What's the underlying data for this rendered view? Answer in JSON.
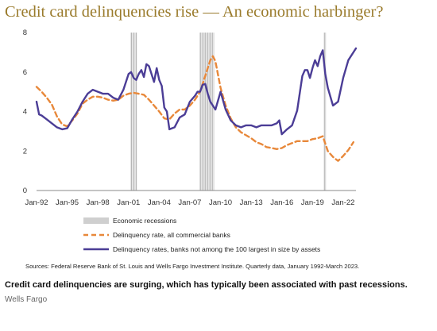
{
  "title": "Credit card delinquencies rise — An economic harbinger?",
  "caption": "Credit card delinquencies are surging, which has typically been associated with past recessions.",
  "credit": "Wells Fargo",
  "sources": "Sources: Federal Reserve Bank of St. Louis and Wells Fargo Investment Institute. Quarterly data, January 1992-March 2023.",
  "colors": {
    "recession": "#cfcfcf",
    "all_banks": "#e8883a",
    "non_top100": "#4b3d96",
    "title": "#9a7b2c"
  },
  "chart_data": {
    "type": "line",
    "xlim": [
      1992.0,
      2023.25
    ],
    "ylim": [
      0,
      8
    ],
    "yticks": [
      0,
      2,
      4,
      6,
      8
    ],
    "ytick_labels": [
      "0",
      "2",
      "4",
      "6",
      "8"
    ],
    "xticks": [
      1992,
      1995,
      1998,
      2001,
      2004,
      2007,
      2010,
      2013,
      2016,
      2019,
      2022
    ],
    "xtick_labels": [
      "Jan-92",
      "Jan-95",
      "Jan-98",
      "Jan-01",
      "Jan-04",
      "Jan-07",
      "Jan-10",
      "Jan-13",
      "Jan-16",
      "Jan-19",
      "Jan-22"
    ],
    "recessions": [
      {
        "start": 2001.17,
        "end": 2001.83
      },
      {
        "start": 2007.92,
        "end": 2009.42
      },
      {
        "start": 2020.08,
        "end": 2020.33
      }
    ],
    "legend": {
      "position": "bottom",
      "recession_label": "Economic recessions",
      "entries": [
        {
          "name": "Delinquency rate, all commercial banks",
          "style": "dashed",
          "color_key": "all_banks"
        },
        {
          "name": "Delinquency rates, banks not among the 100 largest in size by assets",
          "style": "solid",
          "color_key": "non_top100"
        }
      ]
    },
    "series": [
      {
        "name": "Delinquency rate, all commercial banks",
        "x": [
          1992.0,
          1992.5,
          1993.0,
          1993.5,
          1994.0,
          1994.5,
          1995.0,
          1995.5,
          1996.0,
          1996.5,
          1997.0,
          1997.5,
          1998.0,
          1998.5,
          1999.0,
          1999.5,
          2000.0,
          2000.5,
          2001.0,
          2001.5,
          2002.0,
          2002.5,
          2003.0,
          2003.5,
          2004.0,
          2004.5,
          2005.0,
          2005.5,
          2006.0,
          2006.5,
          2007.0,
          2007.5,
          2008.0,
          2008.5,
          2009.0,
          2009.25,
          2009.5,
          2010.0,
          2010.5,
          2011.0,
          2011.5,
          2012.0,
          2012.5,
          2013.0,
          2013.5,
          2014.0,
          2014.5,
          2015.0,
          2015.5,
          2016.0,
          2016.5,
          2017.0,
          2017.5,
          2018.0,
          2018.5,
          2019.0,
          2019.5,
          2020.0,
          2020.5,
          2021.0,
          2021.5,
          2022.0,
          2022.5,
          2023.0
        ],
        "values": [
          5.25,
          5.0,
          4.7,
          4.35,
          3.75,
          3.35,
          3.25,
          3.55,
          3.9,
          4.4,
          4.6,
          4.75,
          4.75,
          4.7,
          4.6,
          4.55,
          4.6,
          4.8,
          4.9,
          4.95,
          4.9,
          4.85,
          4.6,
          4.3,
          4.0,
          3.65,
          3.6,
          3.9,
          4.1,
          4.1,
          4.3,
          4.6,
          5.0,
          5.8,
          6.6,
          6.8,
          6.55,
          5.2,
          4.3,
          3.65,
          3.2,
          2.95,
          2.8,
          2.65,
          2.45,
          2.35,
          2.2,
          2.15,
          2.1,
          2.15,
          2.3,
          2.4,
          2.5,
          2.5,
          2.5,
          2.6,
          2.65,
          2.75,
          2.0,
          1.7,
          1.5,
          1.75,
          2.05,
          2.45
        ]
      },
      {
        "name": "Delinquency rates, banks not among the 100 largest in size by assets",
        "x": [
          1992.0,
          1992.25,
          1992.5,
          1993.0,
          1993.5,
          1994.0,
          1994.5,
          1995.0,
          1995.5,
          1996.0,
          1996.5,
          1997.0,
          1997.5,
          1998.0,
          1998.5,
          1999.0,
          1999.5,
          2000.0,
          2000.5,
          2001.0,
          2001.25,
          2001.5,
          2001.75,
          2002.0,
          2002.25,
          2002.5,
          2002.75,
          2003.0,
          2003.25,
          2003.5,
          2003.75,
          2004.0,
          2004.25,
          2004.5,
          2004.75,
          2005.0,
          2005.25,
          2005.5,
          2006.0,
          2006.5,
          2007.0,
          2007.5,
          2007.75,
          2008.0,
          2008.25,
          2008.5,
          2008.75,
          2009.0,
          2009.5,
          2010.0,
          2010.5,
          2011.0,
          2011.5,
          2012.0,
          2012.5,
          2013.0,
          2013.5,
          2014.0,
          2014.5,
          2015.0,
          2015.5,
          2015.75,
          2016.0,
          2016.5,
          2017.0,
          2017.5,
          2018.0,
          2018.25,
          2018.5,
          2018.75,
          2019.0,
          2019.25,
          2019.5,
          2019.75,
          2020.0,
          2020.25,
          2020.5,
          2021.0,
          2021.5,
          2022.0,
          2022.5,
          2023.0,
          2023.25
        ],
        "values": [
          4.5,
          3.85,
          3.8,
          3.6,
          3.4,
          3.2,
          3.1,
          3.15,
          3.6,
          4.0,
          4.5,
          4.9,
          5.1,
          5.0,
          4.9,
          4.9,
          4.7,
          4.6,
          5.1,
          5.9,
          6.0,
          5.7,
          5.6,
          5.9,
          6.1,
          5.75,
          6.4,
          6.3,
          5.9,
          5.5,
          6.2,
          5.6,
          5.3,
          4.2,
          4.0,
          3.1,
          3.15,
          3.2,
          3.7,
          3.85,
          4.5,
          4.8,
          5.0,
          5.0,
          5.35,
          5.4,
          4.9,
          4.5,
          4.1,
          5.0,
          4.1,
          3.55,
          3.3,
          3.2,
          3.3,
          3.3,
          3.2,
          3.3,
          3.3,
          3.3,
          3.4,
          3.55,
          2.85,
          3.1,
          3.3,
          4.05,
          5.8,
          6.1,
          6.1,
          5.7,
          6.2,
          6.6,
          6.3,
          6.8,
          7.1,
          5.9,
          5.2,
          4.3,
          4.5,
          5.7,
          6.6,
          7.0,
          7.2
        ]
      }
    ]
  }
}
